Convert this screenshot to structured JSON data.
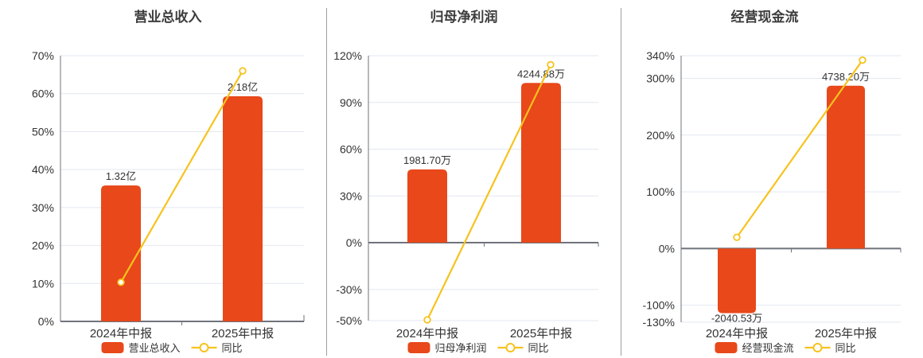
{
  "page": {
    "description": "Three side-by-side semi-annual report performance charts (bar = amount, line = YoY percent)",
    "background": "#ffffff"
  },
  "colors": {
    "bar": "#e8481a",
    "line": "#f6c31d",
    "marker_fill": "#ffffff",
    "grid": "#e2e7f0",
    "axis": "#6e737b",
    "divider": "#9aa0a6",
    "text": "#333333",
    "title": "#3d3d3d"
  },
  "chart_data": [
    {
      "type": "bar",
      "title": "营业总收入",
      "categories": [
        "2024年中报",
        "2025年中报"
      ],
      "bars": {
        "name": "营业总收入",
        "value_labels": [
          "1.32亿",
          "2.18亿"
        ],
        "values_pct": [
          35.8,
          59.3
        ]
      },
      "line": {
        "name": "同比",
        "values_pct": [
          10.3,
          66.0
        ]
      },
      "y_ticks_pct": [
        70,
        60,
        50,
        40,
        30,
        20,
        10,
        0
      ],
      "ylim_pct": [
        0,
        70
      ],
      "grid": true,
      "legend_position": "bottom",
      "legend": [
        "营业总收入",
        "同比"
      ]
    },
    {
      "type": "bar",
      "title": "归母净利润",
      "categories": [
        "2024年中报",
        "2025年中报"
      ],
      "bars": {
        "name": "归母净利润",
        "value_labels": [
          "1981.70万",
          "4244.88万"
        ],
        "values_pct": [
          47.0,
          102.5
        ]
      },
      "line": {
        "name": "同比",
        "values_pct": [
          -49.5,
          114.2
        ]
      },
      "y_ticks_pct": [
        120,
        90,
        60,
        30,
        0,
        -30,
        -50
      ],
      "ylim_pct": [
        -50,
        120
      ],
      "grid": true,
      "legend_position": "bottom",
      "legend": [
        "归母净利润",
        "同比"
      ]
    },
    {
      "type": "bar",
      "title": "经营现金流",
      "categories": [
        "2024年中报",
        "2025年中报"
      ],
      "bars": {
        "name": "经营现金流",
        "value_labels": [
          "-2040.53万",
          "4738.20万"
        ],
        "values_pct": [
          -114.0,
          287.0
        ]
      },
      "line": {
        "name": "同比",
        "values_pct": [
          19.7,
          332.2
        ]
      },
      "y_ticks_pct": [
        340,
        300,
        200,
        100,
        0,
        -100,
        -130
      ],
      "ylim_pct": [
        -130,
        340
      ],
      "grid": true,
      "legend_position": "bottom",
      "legend": [
        "经营现金流",
        "同比"
      ]
    }
  ]
}
